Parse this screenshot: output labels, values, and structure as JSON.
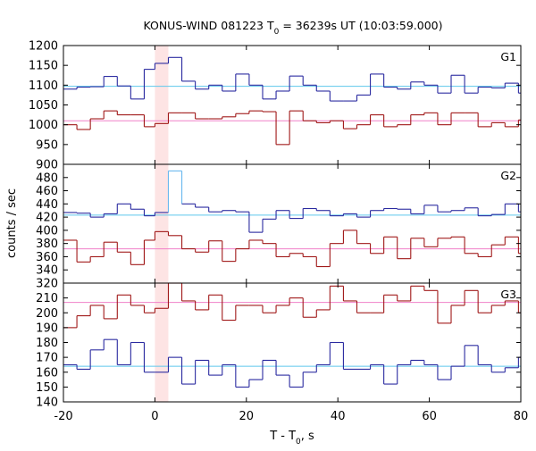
{
  "chart_data": {
    "type": "line",
    "title": "KONUS-WIND 081223 T",
    "title_subscript": "0",
    "title_suffix": " = 36239s UT (10:03:59.000)",
    "xlabel": "T - T",
    "xlabel_subscript": "0",
    "xlabel_suffix": ", s",
    "ylabel": "counts / sec",
    "xlim": [
      -20,
      80
    ],
    "xticks": [
      "-20",
      "0",
      "20",
      "40",
      "60",
      "80"
    ],
    "xtick_values": [
      -20,
      0,
      20,
      40,
      60,
      80
    ],
    "highlight_band": {
      "x0": 0,
      "x1": 2.944,
      "color": "#fde4e4"
    },
    "step_edges": [
      -20,
      -17.056,
      -14.112,
      -11.168,
      -8.224,
      -5.28,
      -2.336,
      0,
      2.944,
      5.888,
      8.832,
      11.776,
      14.72,
      17.664,
      20.608,
      23.552,
      26.496,
      29.44,
      32.384,
      35.328,
      38.272,
      41.216,
      44.16,
      47.104,
      50.048,
      52.992,
      55.936,
      58.88,
      61.824,
      64.768,
      67.712,
      70.656,
      73.6,
      76.544,
      79.488,
      80
    ],
    "panels": [
      {
        "label": "G1",
        "ylim": [
          900,
          1200
        ],
        "yticks": [
          "900",
          "950",
          "1000",
          "1050",
          "1100",
          "1150",
          "1200"
        ],
        "ytick_values": [
          900,
          950,
          1000,
          1050,
          1100,
          1150,
          1200
        ],
        "series": [
          {
            "color": "#2a2aa0",
            "background_level": 1097,
            "background_color": "#5ec8ec",
            "values": [
              1090,
              1095,
              1096,
              1122,
              1098,
              1065,
              1140,
              1155,
              1170,
              1110,
              1090,
              1100,
              1085,
              1128,
              1100,
              1065,
              1085,
              1123,
              1100,
              1085,
              1060,
              1060,
              1075,
              1128,
              1095,
              1090,
              1108,
              1100,
              1080,
              1125,
              1080,
              1095,
              1093,
              1105,
              1080
            ]
          },
          {
            "color": "#a01818",
            "background_level": 1010,
            "background_color": "#f080c8",
            "values": [
              1000,
              988,
              1015,
              1035,
              1025,
              1025,
              995,
              1003,
              1030,
              1030,
              1015,
              1015,
              1020,
              1028,
              1035,
              1033,
              950,
              1035,
              1010,
              1005,
              1010,
              990,
              1000,
              1025,
              995,
              1000,
              1025,
              1030,
              1000,
              1030,
              1030,
              995,
              1005,
              995,
              1012
            ]
          }
        ]
      },
      {
        "label": "G2",
        "ylim": [
          320,
          500
        ],
        "yticks": [
          "320",
          "340",
          "360",
          "380",
          "400",
          "420",
          "440",
          "460",
          "480",
          "500"
        ],
        "ytick_values": [
          320,
          340,
          360,
          380,
          400,
          420,
          440,
          460,
          480,
          500
        ],
        "series": [
          {
            "color": "#2a2aa0",
            "background_level": 423,
            "background_color": "#5ec8ec",
            "values": [
              427,
              426,
              420,
              425,
              440,
              432,
              422,
              427,
              490,
              440,
              435,
              428,
              430,
              428,
              397,
              417,
              430,
              418,
              433,
              430,
              422,
              425,
              420,
              430,
              433,
              432,
              425,
              438,
              428,
              430,
              434,
              422,
              424,
              440,
              428
            ]
          },
          {
            "color": "#a01818",
            "background_level": 372,
            "background_color": "#f080c8",
            "values": [
              385,
              352,
              360,
              382,
              367,
              348,
              385,
              398,
              392,
              372,
              367,
              384,
              353,
              372,
              385,
              380,
              360,
              365,
              360,
              345,
              380,
              400,
              380,
              365,
              390,
              357,
              388,
              375,
              388,
              390,
              365,
              360,
              378,
              390,
              365
            ]
          }
        ]
      },
      {
        "label": "G3",
        "ylim": [
          140,
          220
        ],
        "yticks": [
          "140",
          "150",
          "160",
          "170",
          "180",
          "190",
          "200",
          "210",
          "220"
        ],
        "ytick_values": [
          140,
          150,
          160,
          170,
          180,
          190,
          200,
          210,
          220
        ],
        "series": [
          {
            "color": "#2a2aa0",
            "background_level": 164,
            "background_color": "#5ec8ec",
            "values": [
              165,
              162,
              175,
              182,
              165,
              180,
              160,
              160,
              170,
              152,
              168,
              158,
              165,
              150,
              155,
              168,
              158,
              150,
              160,
              165,
              180,
              162,
              162,
              165,
              152,
              165,
              168,
              165,
              155,
              164,
              178,
              165,
              160,
              163,
              170
            ]
          },
          {
            "color": "#a01818",
            "background_level": 207,
            "background_color": "#f080c8",
            "values": [
              190,
              198,
              205,
              196,
              212,
              205,
              200,
              203,
              220,
              208,
              202,
              212,
              195,
              205,
              205,
              200,
              205,
              210,
              197,
              202,
              218,
              208,
              200,
              200,
              212,
              208,
              218,
              215,
              193,
              205,
              215,
              200,
              205,
              208,
              200
            ]
          }
        ]
      }
    ]
  }
}
